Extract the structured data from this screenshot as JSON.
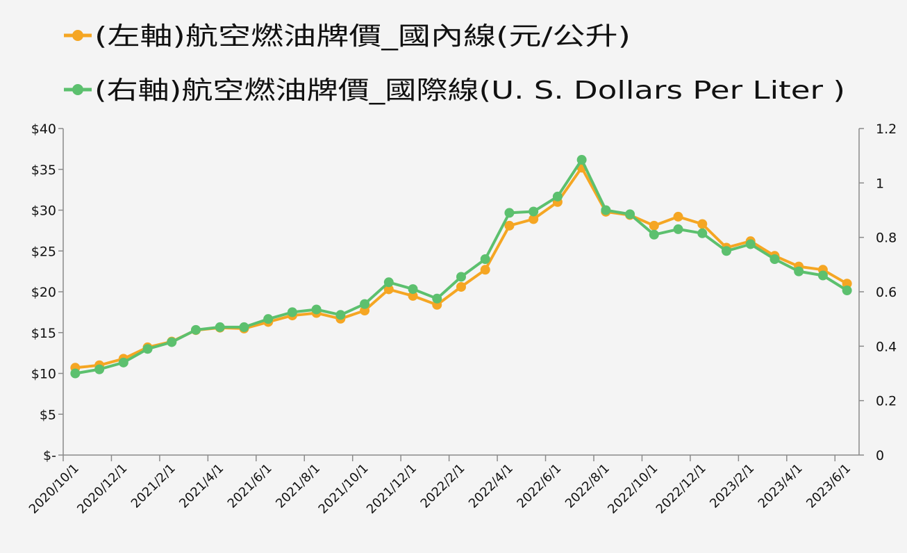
{
  "chart_data": {
    "type": "line",
    "categories": [
      "2020/10/1",
      "2020/11/1",
      "2020/12/1",
      "2021/1/1",
      "2021/2/1",
      "2021/3/1",
      "2021/4/1",
      "2021/5/1",
      "2021/6/1",
      "2021/7/1",
      "2021/8/1",
      "2021/9/1",
      "2021/10/1",
      "2021/11/1",
      "2021/12/1",
      "2022/1/1",
      "2022/2/1",
      "2022/3/1",
      "2022/4/1",
      "2022/5/1",
      "2022/6/1",
      "2022/7/1",
      "2022/8/1",
      "2022/9/1",
      "2022/10/1",
      "2022/11/1",
      "2022/12/1",
      "2023/1/1",
      "2023/2/1",
      "2023/3/1",
      "2023/4/1",
      "2023/5/1",
      "2023/6/1"
    ],
    "x_tick_labels": [
      "2020/10/1",
      "2020/12/1",
      "2021/2/1",
      "2021/4/1",
      "2021/6/1",
      "2021/8/1",
      "2021/10/1",
      "2021/12/1",
      "2022/2/1",
      "2022/4/1",
      "2022/6/1",
      "2022/8/1",
      "2022/10/1",
      "2022/12/1",
      "2023/2/1",
      "2023/4/1",
      "2023/6/1"
    ],
    "series": [
      {
        "name": "(左軸)航空燃油牌價_國內線(元/公升)",
        "axis": "left",
        "color": "#f5a623",
        "values": [
          10.7,
          11.0,
          11.8,
          13.2,
          13.9,
          15.3,
          15.6,
          15.5,
          16.3,
          17.1,
          17.4,
          16.7,
          17.7,
          20.3,
          19.5,
          18.4,
          20.6,
          22.7,
          28.1,
          28.9,
          31.0,
          35.2,
          29.8,
          29.4,
          28.1,
          29.2,
          28.3,
          25.4,
          26.2,
          24.4,
          23.1,
          22.7,
          21.0
        ]
      },
      {
        "name": "(右軸)航空燃油牌價_國際線(U. S. Dollars Per Liter )",
        "axis": "right",
        "color": "#5cc06e",
        "values": [
          0.3,
          0.315,
          0.34,
          0.39,
          0.415,
          0.46,
          0.47,
          0.47,
          0.5,
          0.525,
          0.535,
          0.515,
          0.555,
          0.635,
          0.61,
          0.575,
          0.655,
          0.72,
          0.89,
          0.895,
          0.95,
          1.085,
          0.9,
          0.885,
          0.81,
          0.83,
          0.815,
          0.75,
          0.775,
          0.72,
          0.675,
          0.66,
          0.605
        ]
      }
    ],
    "y_left": {
      "ylim": [
        0,
        40
      ],
      "ticks": [
        0,
        5,
        10,
        15,
        20,
        25,
        30,
        35,
        40
      ],
      "tick_labels": [
        "$-",
        "$5",
        "$10",
        "$15",
        "$20",
        "$25",
        "$30",
        "$35",
        "$40"
      ]
    },
    "y_right": {
      "ylim": [
        0,
        1.2
      ],
      "ticks": [
        0,
        0.2,
        0.4,
        0.6,
        0.8,
        1.0,
        1.2
      ],
      "tick_labels": [
        "0",
        "0.2",
        "0.4",
        "0.6",
        "0.8",
        "1",
        "1.2"
      ]
    },
    "legend_position": "top-left",
    "grid": false
  }
}
